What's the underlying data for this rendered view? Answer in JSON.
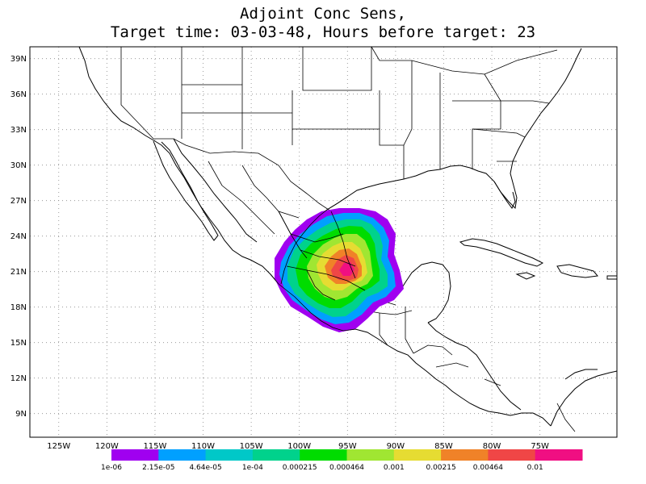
{
  "title": {
    "line1": "Adjoint Conc Sens,",
    "line2": "Target time: 03-03-48, Hours before target: 23"
  },
  "map": {
    "lon_range": [
      -128,
      -67
    ],
    "lat_range": [
      7,
      40
    ],
    "lon_ticks": [
      "125W",
      "120W",
      "115W",
      "110W",
      "105W",
      "100W",
      "95W",
      "90W",
      "85W",
      "80W",
      "75W"
    ],
    "lon_tick_values": [
      -125,
      -120,
      -115,
      -110,
      -105,
      -100,
      -95,
      -90,
      -85,
      -80,
      -75
    ],
    "lat_ticks": [
      "39N",
      "36N",
      "33N",
      "30N",
      "27N",
      "24N",
      "21N",
      "18N",
      "15N",
      "12N",
      "9N"
    ],
    "lat_tick_values": [
      39,
      36,
      33,
      30,
      27,
      24,
      21,
      18,
      15,
      12,
      9
    ],
    "grid": "dotted",
    "projection": "lat-lon"
  },
  "colorbar": {
    "labels": [
      "1e-06",
      "2.15e-05",
      "4.64e-05",
      "1e-04",
      "0.000215",
      "0.000464",
      "0.001",
      "0.00215",
      "0.00464",
      "0.01"
    ],
    "colors": [
      "#a000f0",
      "#00a0ff",
      "#00c8c8",
      "#00d28c",
      "#00dc00",
      "#a0e632",
      "#e6dc32",
      "#f08228",
      "#f04646",
      "#f00f82"
    ]
  }
}
